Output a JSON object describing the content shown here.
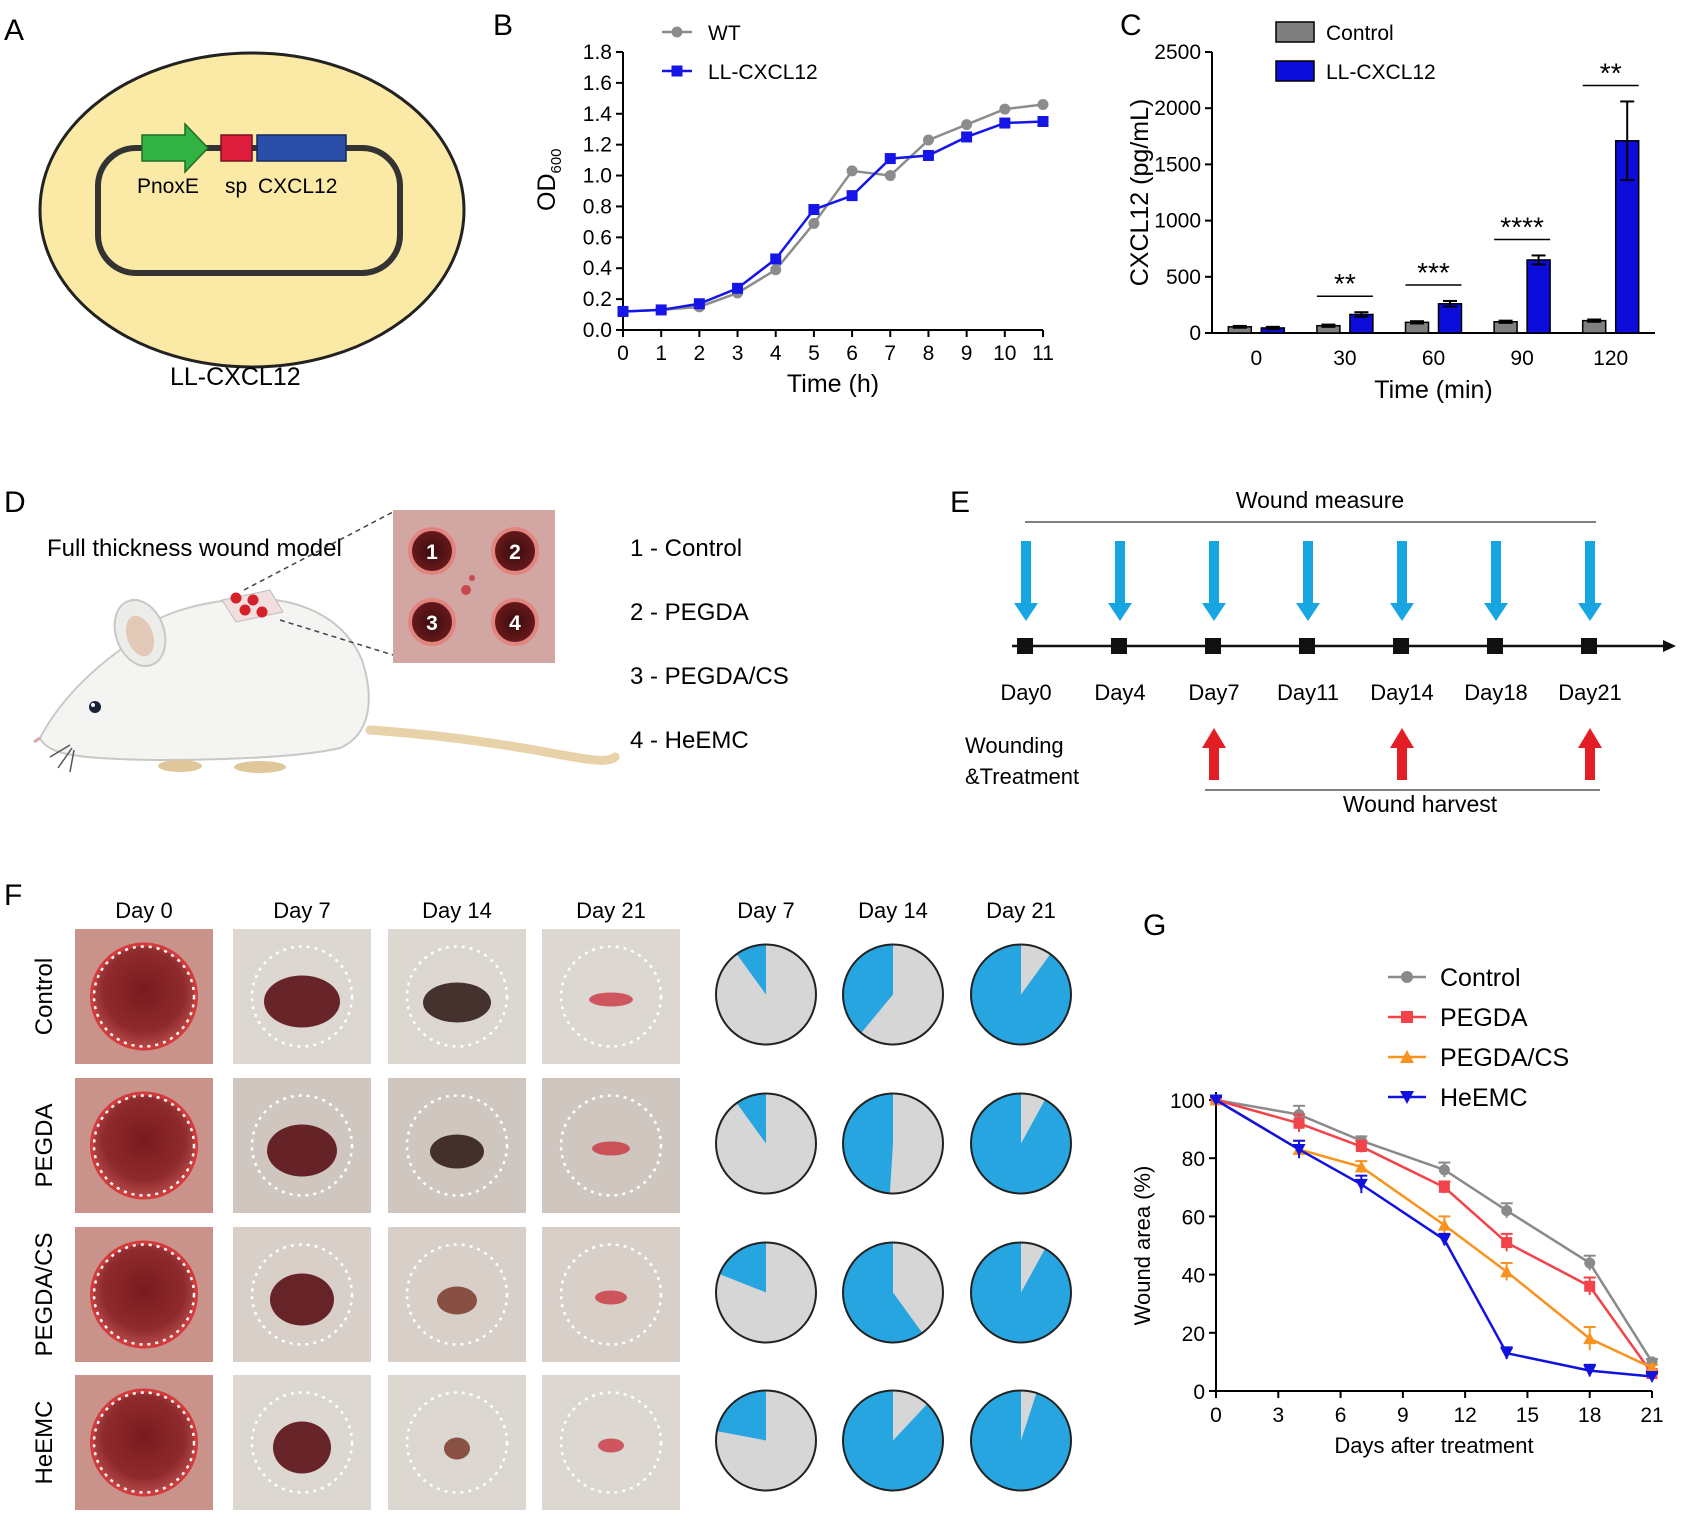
{
  "panels": {
    "A": {
      "label": "A",
      "plasmid_labels": [
        "PnoxE",
        "sp",
        "CXCL12"
      ],
      "strain": "LL-CXCL12"
    },
    "B": {
      "label": "B",
      "chart_data": {
        "type": "line",
        "xlabel": "Time (h)",
        "ylabel": "OD",
        "ylabel_sub": "600",
        "xlim": [
          0,
          11
        ],
        "ylim": [
          0,
          1.8
        ],
        "xticks": [
          "0",
          "1",
          "2",
          "3",
          "4",
          "5",
          "6",
          "7",
          "8",
          "9",
          "10",
          "11"
        ],
        "yticks": [
          "0.0",
          "0.2",
          "0.4",
          "0.6",
          "0.8",
          "1.0",
          "1.2",
          "1.4",
          "1.6",
          "1.8"
        ],
        "x": [
          0,
          1,
          2,
          3,
          4,
          5,
          6,
          7,
          8,
          9,
          10,
          11
        ],
        "series": [
          {
            "name": "WT",
            "color": "#8c8c8c",
            "marker": "circle",
            "values": [
              0.12,
              0.13,
              0.15,
              0.24,
              0.39,
              0.69,
              1.03,
              1.0,
              1.23,
              1.33,
              1.43,
              1.46
            ]
          },
          {
            "name": "LL-CXCL12",
            "color": "#1515e8",
            "marker": "square",
            "values": [
              0.12,
              0.13,
              0.17,
              0.27,
              0.46,
              0.78,
              0.87,
              1.11,
              1.13,
              1.25,
              1.34,
              1.35
            ]
          }
        ]
      }
    },
    "C": {
      "label": "C",
      "chart_data": {
        "type": "bar",
        "xlabel": "Time (min)",
        "ylabel": "CXCL12 (pg/mL)",
        "ylim": [
          0,
          2500
        ],
        "yticks": [
          "0",
          "500",
          "1000",
          "1500",
          "2000",
          "2500"
        ],
        "categories": [
          "0",
          "30",
          "60",
          "90",
          "120"
        ],
        "series": [
          {
            "name": "Control",
            "color": "#7f7f7f",
            "values": [
              55,
              65,
              95,
              100,
              110
            ],
            "errors": [
              8,
              10,
              10,
              10,
              10
            ]
          },
          {
            "name": "LL-CXCL12",
            "color": "#0d0ddb",
            "values": [
              45,
              165,
              260,
              650,
              1710
            ],
            "errors": [
              10,
              20,
              25,
              40,
              350
            ]
          }
        ],
        "significance": [
          "",
          "**",
          "***",
          "****",
          "**"
        ]
      }
    },
    "D": {
      "label": "D",
      "title": "Full thickness wound model",
      "wound_numbers": [
        "1",
        "2",
        "3",
        "4"
      ],
      "groups": [
        "1 - Control",
        "2 - PEGDA",
        "3 - PEGDA/CS",
        "4 - HeEMC"
      ]
    },
    "E": {
      "label": "E",
      "top_label": "Wound measure",
      "days": [
        "Day0",
        "Day4",
        "Day7",
        "Day11",
        "Day14",
        "Day18",
        "Day21"
      ],
      "left_label_1": "Wounding",
      "left_label_2": "&Treatment",
      "bottom_label": "Wound harvest",
      "colors": {
        "measure_arrow": "#18a6e3",
        "harvest_arrow": "#e31e24"
      }
    },
    "F": {
      "label": "F",
      "photo_days": [
        "Day 0",
        "Day 7",
        "Day 14",
        "Day 21"
      ],
      "pie_days": [
        "Day 7",
        "Day 14",
        "Day 21"
      ],
      "rows": [
        "Control",
        "PEGDA",
        "PEGDA/CS",
        "HeEMC"
      ],
      "closed_fraction": [
        [
          0.1,
          0.39,
          0.9
        ],
        [
          0.1,
          0.49,
          0.92
        ],
        [
          0.19,
          0.6,
          0.92
        ],
        [
          0.22,
          0.88,
          0.95
        ]
      ],
      "colors": {
        "closed": "#26a5e0",
        "open": "#d6d6d6"
      }
    },
    "G": {
      "label": "G",
      "chart_data": {
        "type": "line",
        "xlabel": "Days after treatment",
        "ylabel": "Wound area (%)",
        "xlim": [
          0,
          21
        ],
        "ylim": [
          0,
          100
        ],
        "xticks": [
          "0",
          "3",
          "6",
          "9",
          "12",
          "15",
          "18",
          "21"
        ],
        "yticks": [
          "0",
          "20",
          "40",
          "60",
          "80",
          "100"
        ],
        "x": [
          0,
          4,
          7,
          11,
          14,
          18,
          21
        ],
        "series": [
          {
            "name": "Control",
            "color": "#8a8a8a",
            "marker": "circle",
            "values": [
              100,
              95,
              86,
              76,
              62,
              44,
              10
            ],
            "errors": [
              1,
              3,
              1.5,
              2.5,
              2.5,
              2.5,
              1
            ]
          },
          {
            "name": "PEGDA",
            "color": "#f2434a",
            "marker": "square",
            "values": [
              100,
              92,
              84,
              70,
              51,
              36,
              6
            ],
            "errors": [
              1,
              3,
              2,
              2,
              3,
              3,
              1
            ]
          },
          {
            "name": "PEGDA/CS",
            "color": "#f7931e",
            "marker": "triangle-up",
            "values": [
              100,
              83,
              77,
              57,
              41,
              18,
              8
            ],
            "errors": [
              1,
              3,
              2,
              3,
              3,
              4,
              1
            ]
          },
          {
            "name": "HeEMC",
            "color": "#1212e0",
            "marker": "triangle-down",
            "values": [
              100,
              83,
              71,
              52,
              13,
              7,
              5
            ],
            "errors": [
              1,
              3,
              3,
              2,
              2,
              2,
              1
            ]
          }
        ]
      }
    }
  }
}
